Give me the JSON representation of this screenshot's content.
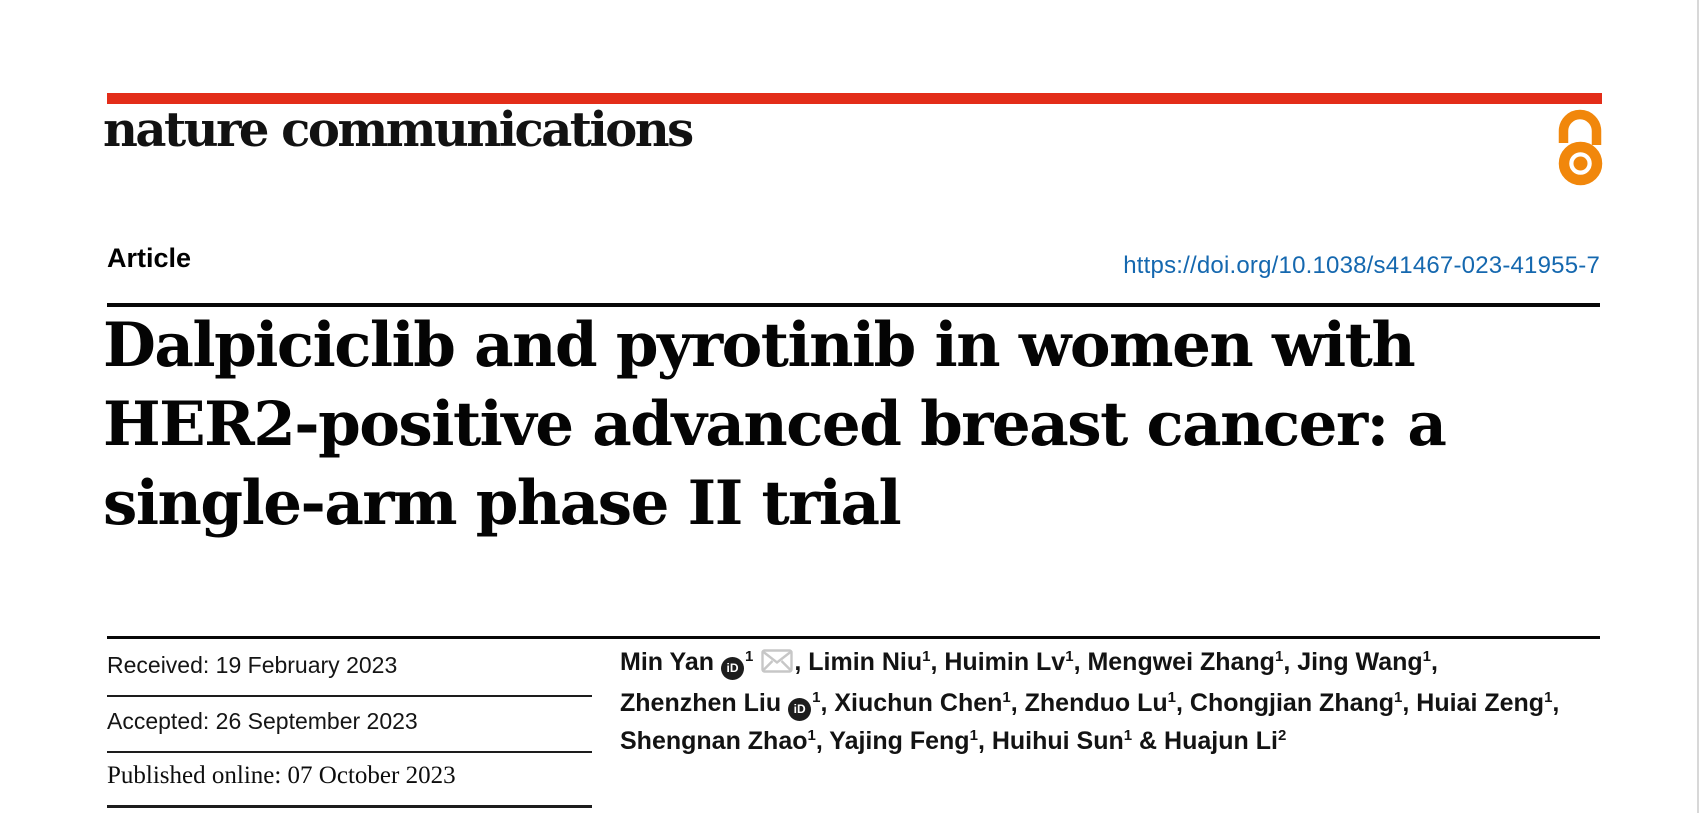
{
  "brand": {
    "wordmark": "nature communications",
    "bar_color": "#e32d19",
    "open_access_color": "#f1870b",
    "link_color": "#1568af"
  },
  "article": {
    "kind_label": "Article",
    "doi": "https://doi.org/10.1038/s41467-023-41955-7",
    "title_lines": [
      "Dalpiciclib and pyrotinib in women with",
      "HER2-positive advanced breast cancer: a",
      "single-arm phase II trial"
    ]
  },
  "meta": {
    "rows": [
      {
        "name": "received",
        "text": "Received: 19 February 2023"
      },
      {
        "name": "accepted",
        "text": "Accepted: 26 September 2023"
      },
      {
        "name": "published",
        "text": "Published online: 07 October 2023"
      }
    ]
  },
  "icons": {
    "orcid_glyph": "iD",
    "orcid_name": "orcid-icon",
    "email_name": "email-envelope-icon",
    "open_access_name": "open-access-lock-icon"
  },
  "authors": {
    "lines": [
      [
        {
          "t": "Min Yan"
        },
        {
          "icon": "orcid"
        },
        {
          "sup": "1"
        },
        {
          "icon": "email"
        },
        {
          "t": ", Limin Niu"
        },
        {
          "sup": "1"
        },
        {
          "t": ", Huimin Lv"
        },
        {
          "sup": "1"
        },
        {
          "t": ", Mengwei Zhang"
        },
        {
          "sup": "1"
        },
        {
          "t": ", Jing Wang"
        },
        {
          "sup": "1"
        },
        {
          "t": ","
        }
      ],
      [
        {
          "t": "Zhenzhen Liu"
        },
        {
          "icon": "orcid"
        },
        {
          "sup": "1"
        },
        {
          "t": ", Xiuchun Chen"
        },
        {
          "sup": "1"
        },
        {
          "t": ", Zhenduo Lu"
        },
        {
          "sup": "1"
        },
        {
          "t": ", Chongjian Zhang"
        },
        {
          "sup": "1"
        },
        {
          "t": ", Huiai Zeng"
        },
        {
          "sup": "1"
        },
        {
          "t": ","
        }
      ],
      [
        {
          "t": "Shengnan Zhao"
        },
        {
          "sup": "1"
        },
        {
          "t": ", Yajing Feng"
        },
        {
          "sup": "1"
        },
        {
          "t": ", Huihui Sun"
        },
        {
          "sup": "1"
        },
        {
          "t": " & Huajun Li"
        },
        {
          "sup": "2"
        }
      ]
    ]
  }
}
